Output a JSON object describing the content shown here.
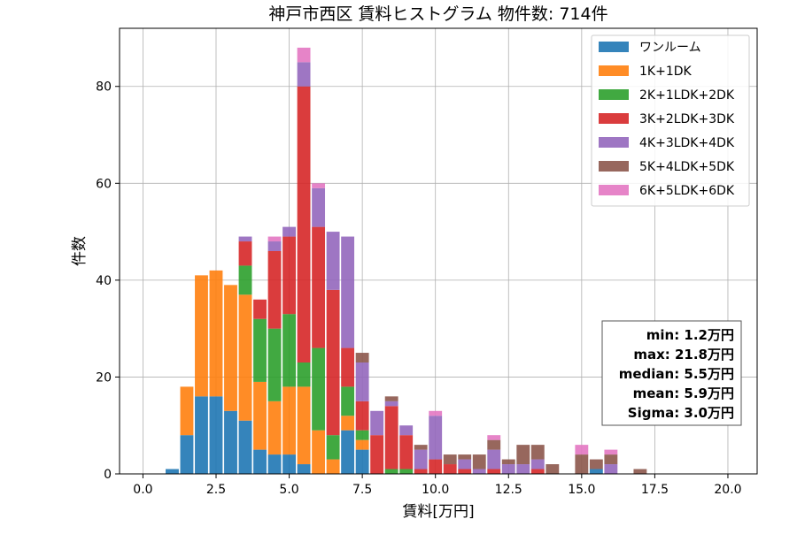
{
  "chart_data": {
    "type": "bar",
    "stacked": true,
    "title": "神戸市西区 賃料ヒストグラム  物件数: 714件",
    "xlabel": "賃料[万円]",
    "ylabel": "件数",
    "xlim": [
      -0.8,
      21.0
    ],
    "ylim": [
      0,
      92
    ],
    "xticks": [
      0.0,
      2.5,
      5.0,
      7.5,
      10.0,
      12.5,
      15.0,
      17.5,
      20.0
    ],
    "xtick_labels": [
      "0.0",
      "2.5",
      "5.0",
      "7.5",
      "10.0",
      "12.5",
      "15.0",
      "17.5",
      "20.0"
    ],
    "yticks": [
      0,
      20,
      40,
      60,
      80
    ],
    "ytick_labels": [
      "0",
      "20",
      "40",
      "60",
      "80"
    ],
    "grid": true,
    "legend_position": "top-right",
    "bin_width": 0.5,
    "x": [
      1.0,
      1.5,
      2.0,
      2.5,
      3.0,
      3.5,
      4.0,
      4.5,
      5.0,
      5.5,
      6.0,
      6.5,
      7.0,
      7.5,
      8.0,
      8.5,
      9.0,
      9.5,
      10.0,
      10.5,
      11.0,
      11.5,
      12.0,
      12.5,
      13.0,
      13.5,
      14.0,
      15.0,
      15.5,
      16.0,
      17.0
    ],
    "series": [
      {
        "name": "ワンルーム",
        "color": "#1f77b4",
        "values": [
          1,
          8,
          16,
          16,
          13,
          11,
          5,
          4,
          4,
          2,
          0,
          0,
          9,
          5,
          0,
          0,
          0,
          0,
          0,
          0,
          0,
          0,
          0,
          0,
          0,
          0,
          0,
          0,
          1,
          0,
          0
        ]
      },
      {
        "name": "1K+1DK",
        "color": "#ff7f0e",
        "values": [
          0,
          10,
          25,
          26,
          26,
          26,
          14,
          11,
          14,
          16,
          9,
          3,
          3,
          2,
          0,
          0,
          0,
          0,
          0,
          0,
          0,
          0,
          0,
          0,
          0,
          0,
          0,
          0,
          0,
          0,
          0
        ]
      },
      {
        "name": "2K+1LDK+2DK",
        "color": "#2ca02c",
        "values": [
          0,
          0,
          0,
          0,
          0,
          6,
          13,
          15,
          15,
          5,
          17,
          5,
          6,
          2,
          0,
          1,
          1,
          0,
          0,
          0,
          0,
          0,
          0,
          0,
          0,
          0,
          0,
          0,
          0,
          0,
          0
        ]
      },
      {
        "name": "3K+2LDK+3DK",
        "color": "#d62728",
        "values": [
          0,
          0,
          0,
          0,
          0,
          5,
          4,
          16,
          16,
          57,
          25,
          30,
          8,
          6,
          8,
          13,
          7,
          1,
          3,
          2,
          1,
          0,
          1,
          0,
          0,
          1,
          0,
          0,
          0,
          0,
          0
        ]
      },
      {
        "name": "4K+3LDK+4DK",
        "color": "#9467bd",
        "values": [
          0,
          0,
          0,
          0,
          0,
          1,
          0,
          2,
          2,
          5,
          8,
          12,
          23,
          8,
          5,
          1,
          2,
          4,
          9,
          0,
          2,
          1,
          4,
          2,
          2,
          2,
          0,
          0,
          0,
          2,
          0
        ]
      },
      {
        "name": "5K+4LDK+5DK",
        "color": "#8c564b",
        "values": [
          0,
          0,
          0,
          0,
          0,
          0,
          0,
          0,
          0,
          0,
          0,
          0,
          0,
          2,
          0,
          1,
          0,
          1,
          0,
          2,
          1,
          3,
          2,
          1,
          4,
          3,
          2,
          4,
          2,
          2,
          1
        ]
      },
      {
        "name": "6K+5LDK+6DK",
        "color": "#e377c2",
        "values": [
          0,
          0,
          0,
          0,
          0,
          0,
          0,
          1,
          0,
          3,
          1,
          0,
          0,
          0,
          0,
          0,
          0,
          0,
          1,
          0,
          0,
          0,
          1,
          0,
          0,
          0,
          0,
          2,
          0,
          1,
          0
        ]
      }
    ],
    "stats": [
      "min: 1.2万円",
      "max: 21.8万円",
      "median: 5.5万円",
      "mean: 5.9万円",
      "Sigma: 3.0万円"
    ]
  }
}
